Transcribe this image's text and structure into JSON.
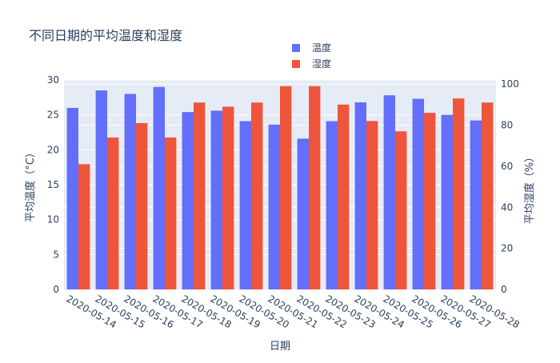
{
  "chart_data": {
    "type": "bar",
    "title": "不同日期的平均温度和湿度",
    "xlabel": "日期",
    "ylabel_left": "平均温度（°C）",
    "ylabel_right": "平均湿度（%）",
    "categories": [
      "2020-05-14",
      "2020-05-15",
      "2020-05-16",
      "2020-05-17",
      "2020-05-18",
      "2020-05-19",
      "2020-05-20",
      "2020-05-21",
      "2020-05-22",
      "2020-05-23",
      "2020-05-24",
      "2020-05-25",
      "2020-05-26",
      "2020-05-27",
      "2020-05-28"
    ],
    "series": [
      {
        "name": "温度",
        "axis": "left",
        "color": "#636efa",
        "values": [
          26.0,
          28.5,
          28.0,
          29.0,
          25.4,
          25.6,
          24.1,
          23.6,
          21.6,
          24.1,
          26.8,
          27.8,
          27.3,
          25.0,
          24.2
        ]
      },
      {
        "name": "湿度",
        "axis": "right",
        "color": "#ef553b",
        "values": [
          61,
          74,
          81,
          74,
          91,
          89,
          91,
          99,
          99,
          90,
          82,
          77,
          86,
          93,
          91
        ]
      }
    ],
    "ylim_left": [
      0,
      30
    ],
    "ylim_right": [
      0,
      102
    ],
    "yticks_left": [
      "0",
      "5",
      "10",
      "15",
      "20",
      "25",
      "30"
    ],
    "yticks_right": [
      "0",
      "20",
      "40",
      "60",
      "80",
      "100"
    ],
    "legend_position": "top-center",
    "grid": true,
    "plot_bg": "#e5ecf6"
  }
}
